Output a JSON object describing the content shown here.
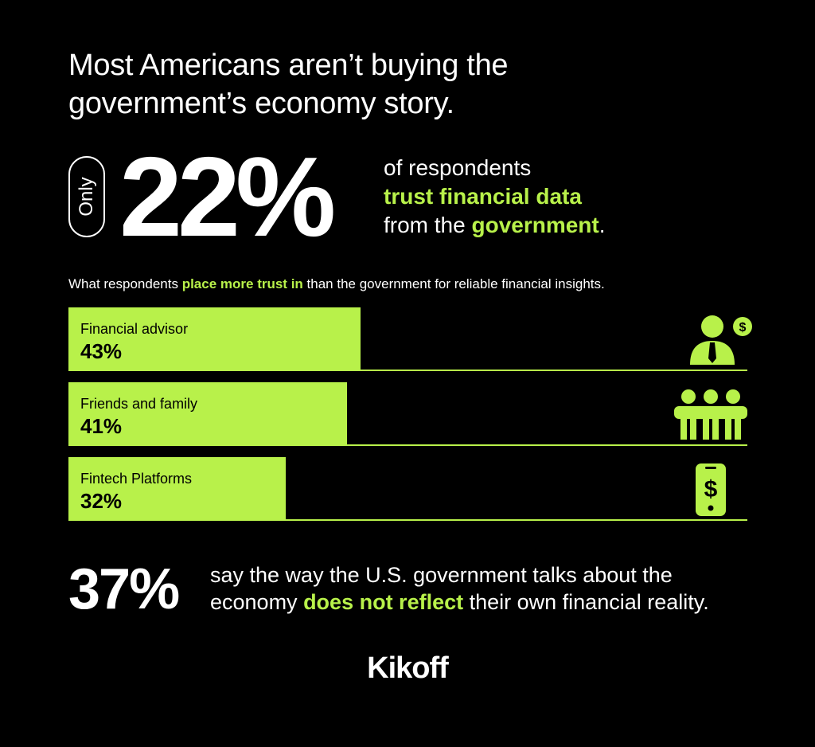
{
  "title": {
    "line1": "Most Americans aren’t buying the",
    "line2": "government’s economy story."
  },
  "headline_stat": {
    "prefix": "Only",
    "value": "22%",
    "line1": "of respondents",
    "line2_highlight": "trust financial data",
    "line3_pre": "from the ",
    "line3_highlight": "government",
    "line3_post": "."
  },
  "subtitle": {
    "pre": "What respondents ",
    "highlight": "place more trust in",
    "post": " than the government for reliable financial insights."
  },
  "chart_data": {
    "type": "bar",
    "orientation": "horizontal",
    "categories": [
      "Financial advisor",
      "Friends and family",
      "Fintech Platforms"
    ],
    "values": [
      43,
      41,
      32
    ],
    "value_labels": [
      "43%",
      "41%",
      "32%"
    ],
    "icons": [
      "advisor-icon",
      "people-group-icon",
      "phone-dollar-icon"
    ],
    "xlim": [
      0,
      100
    ],
    "bar_color": "#b8f14a"
  },
  "closing_stat": {
    "value": "37%",
    "line1": "say the way the U.S. government talks about the",
    "line2_pre": "economy ",
    "line2_highlight": "does not reflect",
    "line2_post": " their own financial reality."
  },
  "brand": "Kikoff",
  "colors": {
    "background": "#000000",
    "accent": "#b8f14a",
    "text": "#ffffff"
  }
}
